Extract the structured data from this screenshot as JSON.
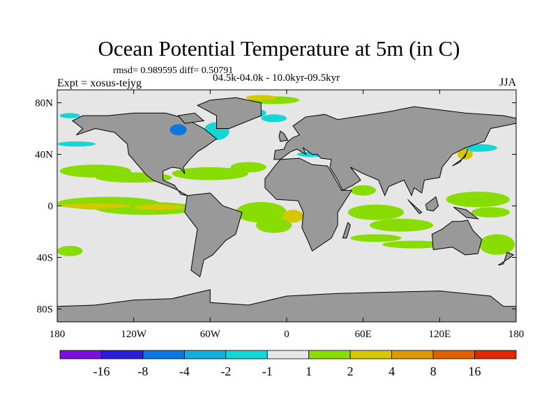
{
  "chart_data": {
    "type": "heatmap",
    "title": "Ocean Potential Temperature at 5m (in C)",
    "stats_label": "rmsd= 0.989595 diff= 0.50791",
    "left_subtitle": "Expt = xosus-tejyg",
    "center_subtitle": "04.5k-04.0k - 10.0kyr-09.5kyr",
    "right_subtitle": "JJA",
    "x_ticks": [
      "180",
      "120W",
      "60W",
      "0",
      "60E",
      "120E",
      "180"
    ],
    "x_tick_values": [
      -180,
      -120,
      -60,
      0,
      60,
      120,
      180
    ],
    "y_ticks": [
      "80N",
      "40N",
      "0",
      "40S",
      "80S"
    ],
    "y_tick_values": [
      80,
      40,
      0,
      -40,
      -80
    ],
    "xlim": [
      -180,
      180
    ],
    "ylim": [
      -90,
      90
    ],
    "colorbar": {
      "levels": [
        "-16",
        "-8",
        "-4",
        "-2",
        "-1",
        "1",
        "2",
        "4",
        "8",
        "16"
      ],
      "colors": [
        "#7a10dc",
        "#2a1ed6",
        "#0a78de",
        "#12aee0",
        "#14d6d4",
        "#e6e6e6",
        "#88dc00",
        "#d6c800",
        "#de9800",
        "#de6000",
        "#de2800"
      ]
    },
    "land_color": "#999999",
    "ocean_color": "#e6e6e6"
  }
}
